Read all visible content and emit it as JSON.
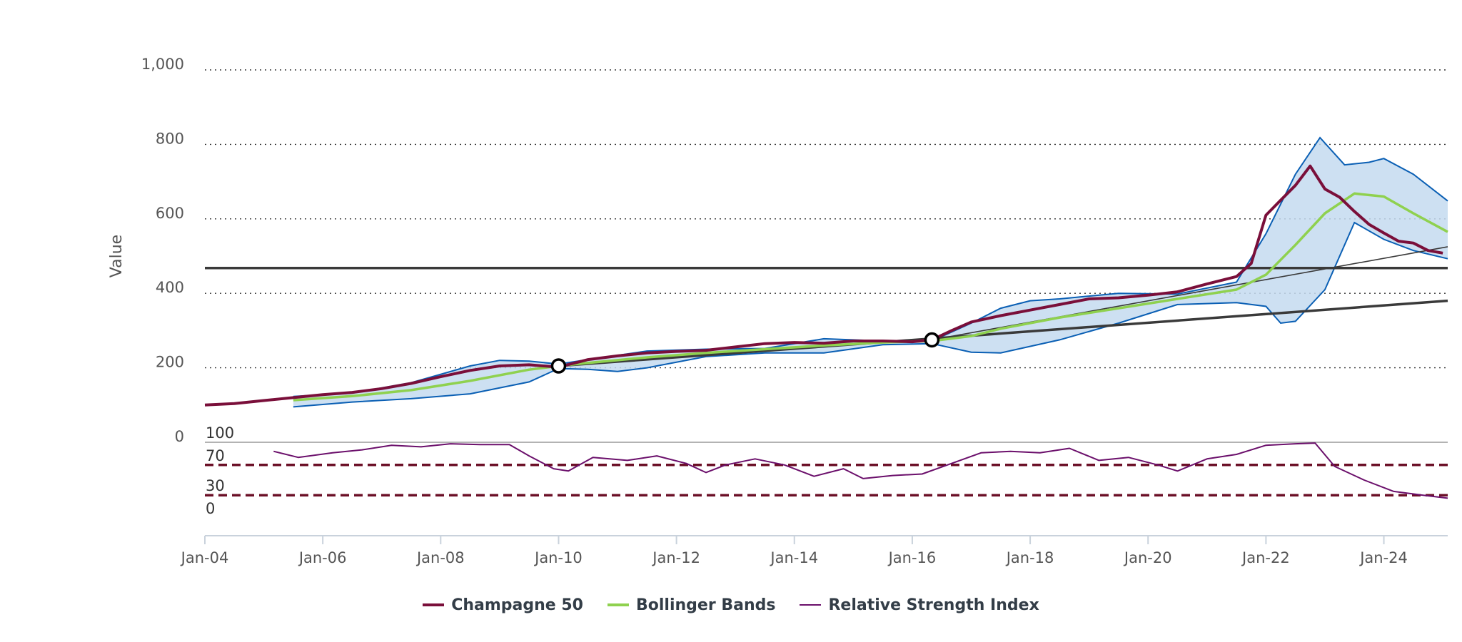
{
  "chart_data": {
    "type": "line",
    "title": "",
    "xlabel": "",
    "ylabel": "Value",
    "ylim": [
      0,
      1000
    ],
    "xlim": [
      "2004-01",
      "2025-02"
    ],
    "y_ticks": [
      "0",
      "200",
      "400",
      "600",
      "800",
      "1,000"
    ],
    "x_ticks": [
      "Jan-04",
      "Jan-06",
      "Jan-08",
      "Jan-10",
      "Jan-12",
      "Jan-14",
      "Jan-16",
      "Jan-18",
      "Jan-20",
      "Jan-22",
      "Jan-24"
    ],
    "grid": "horizontal dotted",
    "legend_position": "bottom-center",
    "colors": {
      "champagne": "#7a0f3a",
      "bollinger_mid": "#8fd14f",
      "bollinger_band": "#0a5fb4",
      "bollinger_fill": "#c4daf0",
      "rsi": "#6b0f6b",
      "rsi_level": "#6b0f26",
      "trend": "#3a3a3a"
    },
    "series": [
      {
        "name": "Champagne 50",
        "points": [
          [
            "2004-01",
            100
          ],
          [
            "2004-07",
            104
          ],
          [
            "2005-01",
            112
          ],
          [
            "2005-07",
            120
          ],
          [
            "2006-01",
            128
          ],
          [
            "2006-07",
            134
          ],
          [
            "2007-01",
            144
          ],
          [
            "2007-07",
            158
          ],
          [
            "2008-01",
            176
          ],
          [
            "2008-07",
            193
          ],
          [
            "2009-01",
            205
          ],
          [
            "2009-07",
            208
          ],
          [
            "2010-01",
            202
          ],
          [
            "2010-07",
            222
          ],
          [
            "2011-01",
            232
          ],
          [
            "2011-07",
            240
          ],
          [
            "2012-01",
            244
          ],
          [
            "2012-07",
            247
          ],
          [
            "2013-01",
            256
          ],
          [
            "2013-07",
            265
          ],
          [
            "2014-01",
            268
          ],
          [
            "2014-07",
            266
          ],
          [
            "2015-01",
            272
          ],
          [
            "2015-07",
            272
          ],
          [
            "2016-01",
            270
          ],
          [
            "2016-05",
            275
          ],
          [
            "2016-09",
            300
          ],
          [
            "2017-01",
            323
          ],
          [
            "2017-07",
            340
          ],
          [
            "2018-01",
            355
          ],
          [
            "2018-07",
            370
          ],
          [
            "2019-01",
            385
          ],
          [
            "2019-07",
            388
          ],
          [
            "2020-01",
            395
          ],
          [
            "2020-07",
            404
          ],
          [
            "2021-01",
            425
          ],
          [
            "2021-07",
            445
          ],
          [
            "2021-10",
            480
          ],
          [
            "2022-01",
            610
          ],
          [
            "2022-04",
            650
          ],
          [
            "2022-07",
            690
          ],
          [
            "2022-10",
            742
          ],
          [
            "2023-01",
            680
          ],
          [
            "2023-04",
            658
          ],
          [
            "2023-07",
            620
          ],
          [
            "2023-10",
            585
          ],
          [
            "2024-01",
            562
          ],
          [
            "2024-04",
            540
          ],
          [
            "2024-07",
            535
          ],
          [
            "2024-10",
            515
          ],
          [
            "2025-01",
            508
          ]
        ]
      },
      {
        "name": "Bollinger Bands",
        "middle": [
          [
            "2005-07",
            113
          ],
          [
            "2006-07",
            124
          ],
          [
            "2007-07",
            140
          ],
          [
            "2008-07",
            165
          ],
          [
            "2009-07",
            195
          ],
          [
            "2010-01",
            205
          ],
          [
            "2010-07",
            213
          ],
          [
            "2011-07",
            228
          ],
          [
            "2012-07",
            240
          ],
          [
            "2013-07",
            250
          ],
          [
            "2014-07",
            260
          ],
          [
            "2015-07",
            268
          ],
          [
            "2016-05",
            272
          ],
          [
            "2017-01",
            285
          ],
          [
            "2017-07",
            305
          ],
          [
            "2018-07",
            335
          ],
          [
            "2019-07",
            360
          ],
          [
            "2020-07",
            385
          ],
          [
            "2021-07",
            410
          ],
          [
            "2022-01",
            450
          ],
          [
            "2022-07",
            530
          ],
          [
            "2023-01",
            615
          ],
          [
            "2023-07",
            668
          ],
          [
            "2024-01",
            660
          ],
          [
            "2024-07",
            615
          ],
          [
            "2025-02",
            565
          ]
        ],
        "upper": [
          [
            "2005-07",
            123
          ],
          [
            "2006-07",
            132
          ],
          [
            "2007-07",
            160
          ],
          [
            "2008-07",
            205
          ],
          [
            "2009-01",
            220
          ],
          [
            "2009-07",
            218
          ],
          [
            "2010-01",
            210
          ],
          [
            "2010-07",
            222
          ],
          [
            "2011-07",
            245
          ],
          [
            "2012-07",
            250
          ],
          [
            "2013-07",
            252
          ],
          [
            "2014-07",
            278
          ],
          [
            "2015-07",
            272
          ],
          [
            "2016-05",
            272
          ],
          [
            "2017-01",
            320
          ],
          [
            "2017-07",
            360
          ],
          [
            "2018-01",
            380
          ],
          [
            "2018-07",
            385
          ],
          [
            "2019-07",
            400
          ],
          [
            "2020-07",
            398
          ],
          [
            "2021-07",
            430
          ],
          [
            "2022-01",
            560
          ],
          [
            "2022-07",
            720
          ],
          [
            "2022-12",
            818
          ],
          [
            "2023-05",
            745
          ],
          [
            "2023-10",
            752
          ],
          [
            "2024-01",
            762
          ],
          [
            "2024-07",
            720
          ],
          [
            "2025-02",
            648
          ]
        ],
        "lower": [
          [
            "2005-07",
            95
          ],
          [
            "2006-07",
            108
          ],
          [
            "2007-07",
            117
          ],
          [
            "2008-07",
            130
          ],
          [
            "2009-07",
            162
          ],
          [
            "2010-01",
            198
          ],
          [
            "2010-07",
            196
          ],
          [
            "2011-01",
            190
          ],
          [
            "2011-07",
            200
          ],
          [
            "2012-07",
            230
          ],
          [
            "2013-07",
            240
          ],
          [
            "2014-07",
            240
          ],
          [
            "2015-07",
            262
          ],
          [
            "2016-05",
            265
          ],
          [
            "2017-01",
            242
          ],
          [
            "2017-07",
            240
          ],
          [
            "2018-07",
            275
          ],
          [
            "2019-07",
            320
          ],
          [
            "2020-07",
            370
          ],
          [
            "2021-07",
            375
          ],
          [
            "2022-01",
            365
          ],
          [
            "2022-04",
            320
          ],
          [
            "2022-07",
            325
          ],
          [
            "2023-01",
            410
          ],
          [
            "2023-07",
            590
          ],
          [
            "2024-01",
            545
          ],
          [
            "2024-07",
            515
          ],
          [
            "2025-02",
            493
          ]
        ]
      },
      {
        "name": "Relative Strength Index",
        "scale": [
          0,
          100
        ],
        "levels": [
          "100",
          "70",
          "30",
          "0"
        ],
        "points": [
          [
            "2005-03",
            88
          ],
          [
            "2005-08",
            80
          ],
          [
            "2006-03",
            86
          ],
          [
            "2006-09",
            90
          ],
          [
            "2007-03",
            96
          ],
          [
            "2007-09",
            94
          ],
          [
            "2008-03",
            98
          ],
          [
            "2008-09",
            97
          ],
          [
            "2009-03",
            97
          ],
          [
            "2009-07",
            82
          ],
          [
            "2009-12",
            65
          ],
          [
            "2010-03",
            62
          ],
          [
            "2010-08",
            80
          ],
          [
            "2011-03",
            76
          ],
          [
            "2011-09",
            82
          ],
          [
            "2012-03",
            72
          ],
          [
            "2012-07",
            60
          ],
          [
            "2012-11",
            70
          ],
          [
            "2013-05",
            78
          ],
          [
            "2013-11",
            70
          ],
          [
            "2014-05",
            55
          ],
          [
            "2014-11",
            65
          ],
          [
            "2015-03",
            52
          ],
          [
            "2015-09",
            56
          ],
          [
            "2016-03",
            58
          ],
          [
            "2016-09",
            72
          ],
          [
            "2017-03",
            86
          ],
          [
            "2017-09",
            88
          ],
          [
            "2018-03",
            86
          ],
          [
            "2018-09",
            92
          ],
          [
            "2019-03",
            76
          ],
          [
            "2019-09",
            80
          ],
          [
            "2020-03",
            70
          ],
          [
            "2020-07",
            62
          ],
          [
            "2021-01",
            78
          ],
          [
            "2021-07",
            84
          ],
          [
            "2022-01",
            96
          ],
          [
            "2022-07",
            98
          ],
          [
            "2022-11",
            99
          ],
          [
            "2023-03",
            68
          ],
          [
            "2023-09",
            50
          ],
          [
            "2024-03",
            35
          ],
          [
            "2024-09",
            30
          ],
          [
            "2025-02",
            26
          ]
        ]
      }
    ],
    "trendlines": [
      {
        "from": [
          "2004-01",
          468
        ],
        "to": [
          "2025-02",
          468
        ]
      },
      {
        "from": [
          "2010-01",
          205
        ],
        "to": [
          "2025-02",
          380
        ]
      },
      {
        "from": [
          "2016-05",
          275
        ],
        "to": [
          "2025-02",
          525
        ]
      }
    ],
    "markers": [
      {
        "x": "2010-01",
        "y": 205
      },
      {
        "x": "2016-05",
        "y": 275
      }
    ]
  }
}
